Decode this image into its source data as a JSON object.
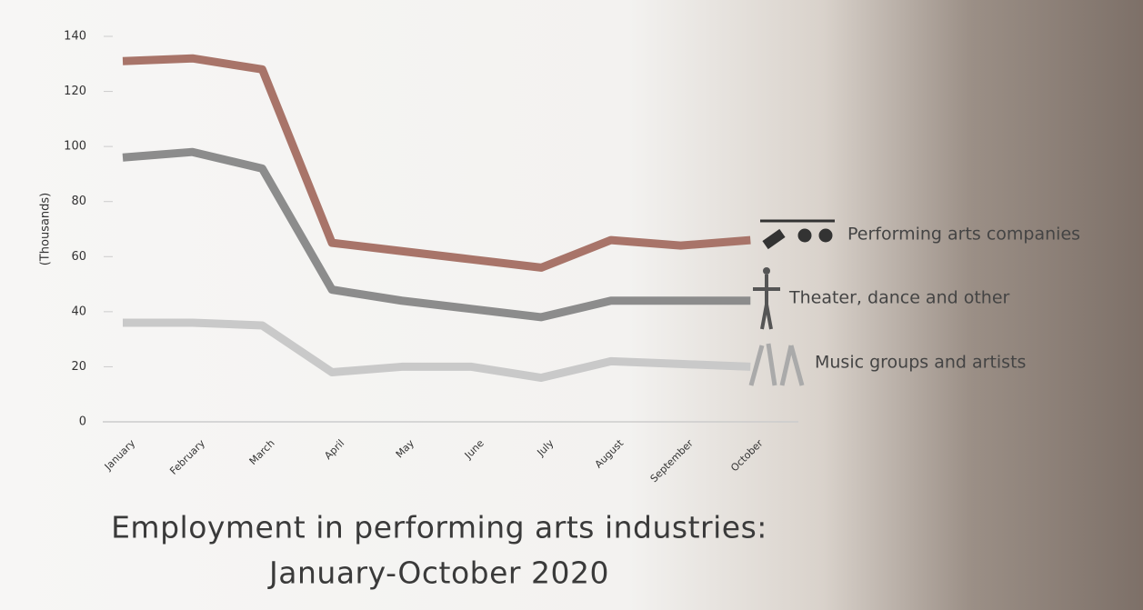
{
  "chart_data": {
    "type": "line",
    "title_lines": [
      "Employment in performing arts industries:",
      "January-October 2020"
    ],
    "y_label": "(Thousands)",
    "categories": [
      "January",
      "February",
      "March",
      "April",
      "May",
      "June",
      "July",
      "August",
      "September",
      "October"
    ],
    "series": [
      {
        "name": "Performing arts companies",
        "color": "#a87469",
        "values": [
          131,
          132,
          128,
          65,
          62,
          59,
          56,
          66,
          64,
          66
        ]
      },
      {
        "name": "Theater, dance and other",
        "color": "#8c8c8c",
        "values": [
          96,
          98,
          92,
          48,
          44,
          41,
          38,
          44,
          44,
          44
        ]
      },
      {
        "name": "Music groups and artists",
        "color": "#c9c9c9",
        "values": [
          36,
          36,
          35,
          18,
          20,
          20,
          16,
          22,
          21,
          20
        ]
      }
    ],
    "ylim": [
      0,
      140
    ],
    "yticks": [
      0,
      20,
      40,
      60,
      80,
      100,
      120,
      140
    ]
  }
}
